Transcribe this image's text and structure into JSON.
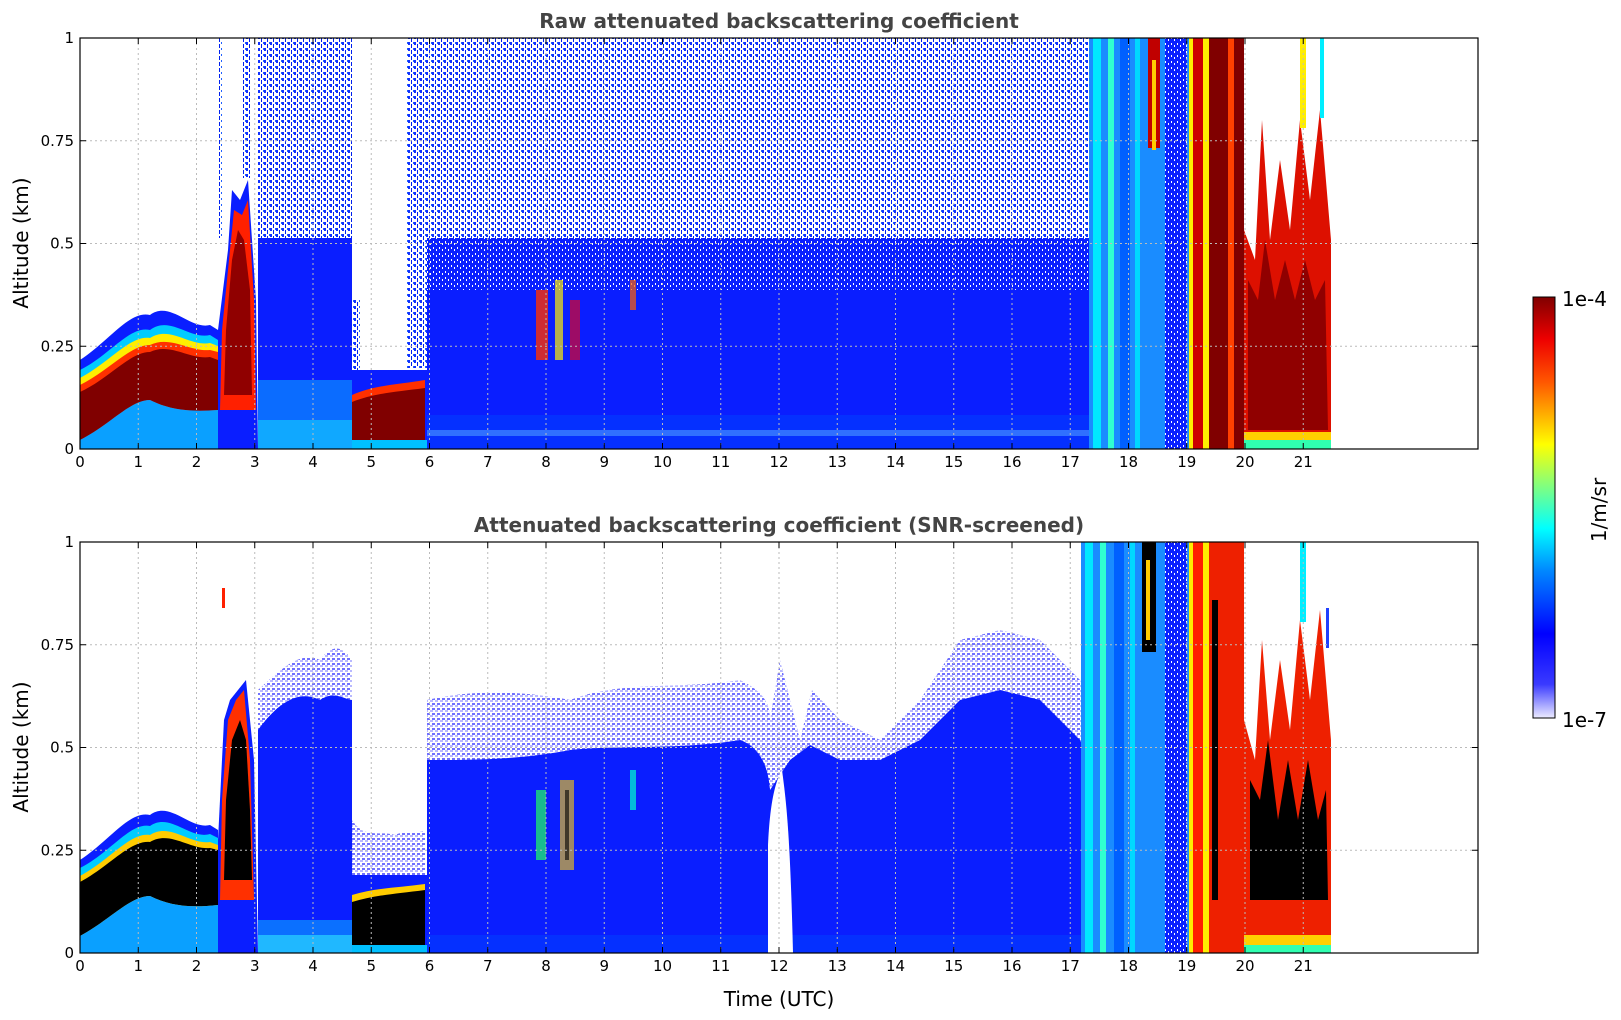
{
  "chart_data": [
    {
      "type": "heatmap",
      "title": "Raw attenuated backscattering coefficient",
      "xlabel": "",
      "ylabel": "Altitude (km)",
      "xlim": [
        0,
        24
      ],
      "ylim": [
        0,
        1
      ],
      "x_ticks": [
        "0",
        "1",
        "2",
        "3",
        "4",
        "5",
        "6",
        "7",
        "8",
        "9",
        "10",
        "11",
        "12",
        "13",
        "14",
        "15",
        "16",
        "17",
        "18",
        "19",
        "20",
        "21"
      ],
      "y_ticks": [
        "0",
        "0.25",
        "0.5",
        "0.75",
        "1"
      ],
      "grid": true,
      "colormap": "jet",
      "data_end_time": 21.45,
      "regions": [
        {
          "t0": 0.0,
          "t1": 2.1,
          "feature": "dense aerosol layer",
          "top_km": 0.3,
          "level": "high"
        },
        {
          "t0": 2.1,
          "t1": 3.0,
          "feature": "elevated aerosol plume",
          "top_km": 0.62,
          "level": "high"
        },
        {
          "t0": 3.0,
          "t1": 4.6,
          "feature": "boundary layer signal",
          "top_km": 0.5,
          "level": "low"
        },
        {
          "t0": 4.7,
          "t1": 5.9,
          "feature": "near-surface layer",
          "top_km": 0.14,
          "level": "high"
        },
        {
          "t0": 6.0,
          "t1": 17.2,
          "feature": "boundary layer signal",
          "top_km": 0.45,
          "level": "low"
        },
        {
          "t0": 17.3,
          "t1": 19.0,
          "feature": "cloud/precipitation",
          "top_km": 1.0,
          "level": "medium"
        },
        {
          "t0": 19.1,
          "t1": 21.45,
          "feature": "dense cloud",
          "top_km": 1.0,
          "level": "high"
        }
      ]
    },
    {
      "type": "heatmap",
      "title": "Attenuated backscattering coefficient (SNR-screened)",
      "xlabel": "Time (UTC)",
      "ylabel": "Altitude (km)",
      "xlim": [
        0,
        24
      ],
      "ylim": [
        0,
        1
      ],
      "x_ticks": [
        "0",
        "1",
        "2",
        "3",
        "4",
        "5",
        "6",
        "7",
        "8",
        "9",
        "10",
        "11",
        "12",
        "13",
        "14",
        "15",
        "16",
        "17",
        "18",
        "19",
        "20",
        "21"
      ],
      "y_ticks": [
        "0",
        "0.25",
        "0.5",
        "0.75",
        "1"
      ],
      "grid": true,
      "colormap": "jet",
      "data_end_time": 21.45,
      "regions": [
        {
          "t0": 0.0,
          "t1": 2.1,
          "feature": "saturated aerosol layer",
          "top_km": 0.3,
          "level": "saturated"
        },
        {
          "t0": 2.1,
          "t1": 3.0,
          "feature": "elevated aerosol plume",
          "top_km": 0.65,
          "level": "saturated"
        },
        {
          "t0": 3.0,
          "t1": 4.6,
          "feature": "boundary layer signal",
          "top_km": 0.7,
          "level": "low"
        },
        {
          "t0": 4.7,
          "t1": 5.9,
          "feature": "near-surface layer",
          "top_km": 0.15,
          "level": "saturated"
        },
        {
          "t0": 6.0,
          "t1": 17.2,
          "feature": "boundary layer signal",
          "top_km": 0.55,
          "level": "low"
        },
        {
          "t0": 17.3,
          "t1": 19.0,
          "feature": "cloud/precipitation",
          "top_km": 1.0,
          "level": "medium"
        },
        {
          "t0": 19.1,
          "t1": 21.45,
          "feature": "dense cloud",
          "top_km": 1.0,
          "level": "saturated"
        }
      ]
    }
  ],
  "colorbar": {
    "label": "1/m/sr",
    "max_label": "1e-4",
    "min_label": "1e-7",
    "colormap": "jet"
  }
}
